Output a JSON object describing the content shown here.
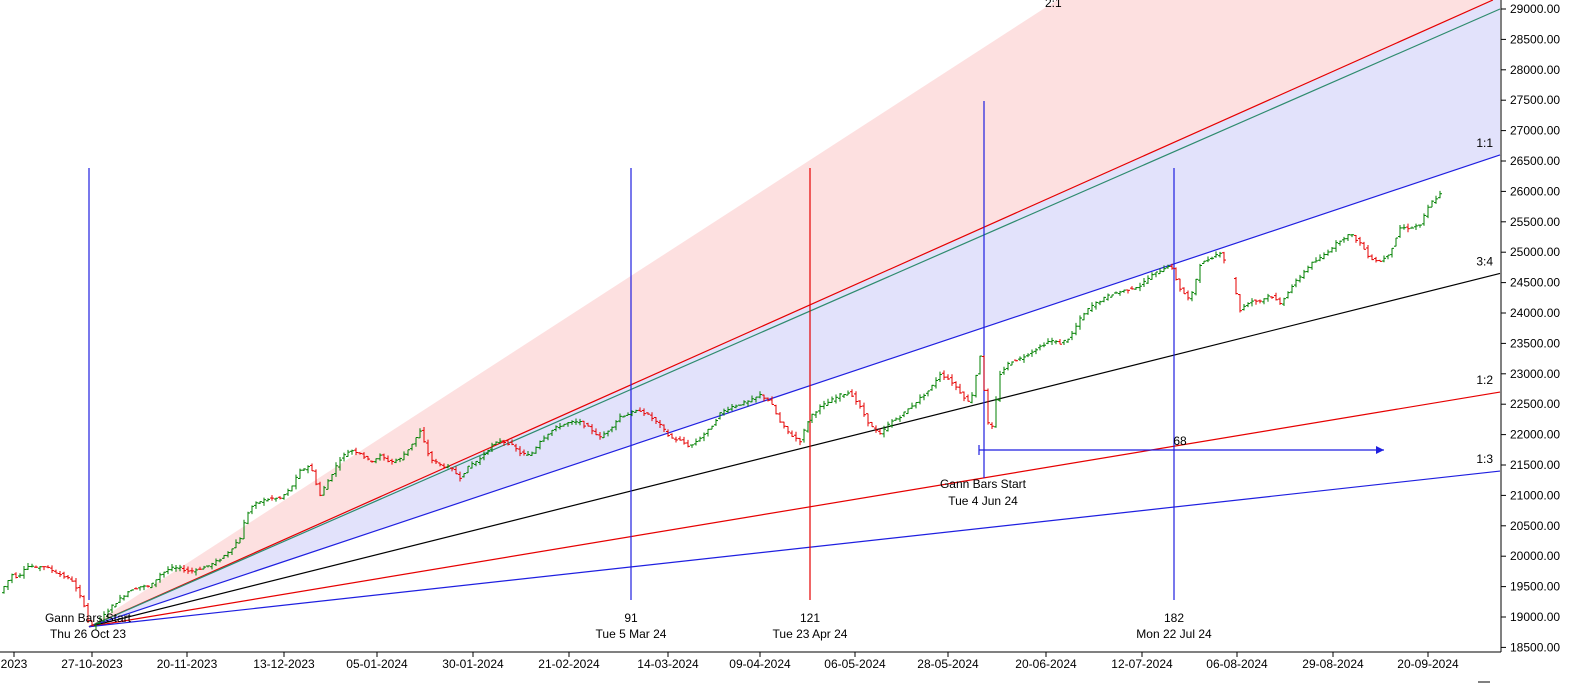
{
  "chart_data": {
    "type": "line",
    "title": "",
    "price_axis": {
      "ylim": [
        18500,
        29100
      ],
      "ticks": [
        "29000.00",
        "28500.00",
        "28000.00",
        "27500.00",
        "27000.00",
        "26500.00",
        "26000.00",
        "25500.00",
        "25000.00",
        "24500.00",
        "24000.00",
        "23500.00",
        "23000.00",
        "22500.00",
        "22000.00",
        "21500.00",
        "21000.00",
        "20500.00",
        "20000.00",
        "19500.00",
        "19000.00",
        "18500.00"
      ]
    },
    "date_axis": {
      "ticks": [
        "2023",
        "27-10-2023",
        "20-11-2023",
        "13-12-2023",
        "05-01-2024",
        "30-01-2024",
        "21-02-2024",
        "14-03-2024",
        "09-04-2024",
        "06-05-2024",
        "28-05-2024",
        "20-06-2024",
        "12-07-2024",
        "06-08-2024",
        "29-08-2024",
        "20-09-2024"
      ]
    },
    "gann_fan": {
      "origin": {
        "date": "2023-10-26",
        "price": 18840
      },
      "lines": [
        {
          "label": "2:1",
          "color": "#e60000",
          "end_price": 29200
        },
        {
          "label": "",
          "color": "#2e8b6e",
          "end_price": 29000
        },
        {
          "label": "1:1",
          "color": "#1f1fe0",
          "end_price": 26600
        },
        {
          "label": "3:4",
          "color": "#000000",
          "end_price": 24650
        },
        {
          "label": "1:2",
          "color": "#e60000",
          "end_price": 22700
        },
        {
          "label": "1:3",
          "color": "#1f1fe0",
          "end_price": 21400
        }
      ]
    },
    "vertical_markers": [
      {
        "label": "Gann Bars Start",
        "date_label": "Thu 26 Oct 23",
        "color": "#1f1fe0"
      },
      {
        "label": "91",
        "date_label": "Tue 5 Mar 24",
        "color": "#1f1fe0"
      },
      {
        "label": "121",
        "date_label": "Tue 23 Apr 24",
        "color": "#e60000"
      },
      {
        "label": "",
        "date_label": "",
        "color": "#1f1fe0"
      },
      {
        "label": "182",
        "date_label": "Mon 22 Jul 24",
        "color": "#1f1fe0"
      }
    ],
    "second_start": {
      "label": "Gann Bars Start",
      "date_label": "Tue 4 Jun 24",
      "count_label": "68"
    },
    "series": [
      {
        "type": "ohlc",
        "up_color": "#008000",
        "down_color": "#e60000",
        "close_path": [
          [
            0,
            19400
          ],
          [
            6,
            19550
          ],
          [
            12,
            19700
          ],
          [
            18,
            19650
          ],
          [
            24,
            19800
          ],
          [
            30,
            19850
          ],
          [
            36,
            19800
          ],
          [
            42,
            19850
          ],
          [
            48,
            19800
          ],
          [
            54,
            19750
          ],
          [
            60,
            19700
          ],
          [
            66,
            19650
          ],
          [
            72,
            19600
          ],
          [
            78,
            19400
          ],
          [
            84,
            19200
          ],
          [
            88,
            18950
          ],
          [
            92,
            18850
          ],
          [
            100,
            18950
          ],
          [
            110,
            19150
          ],
          [
            120,
            19300
          ],
          [
            130,
            19450
          ],
          [
            140,
            19500
          ],
          [
            150,
            19500
          ],
          [
            160,
            19700
          ],
          [
            170,
            19800
          ],
          [
            180,
            19800
          ],
          [
            190,
            19750
          ],
          [
            200,
            19800
          ],
          [
            210,
            19850
          ],
          [
            220,
            19950
          ],
          [
            230,
            20100
          ],
          [
            240,
            20300
          ],
          [
            245,
            20600
          ],
          [
            250,
            20800
          ],
          [
            260,
            20900
          ],
          [
            270,
            20950
          ],
          [
            280,
            20950
          ],
          [
            290,
            21100
          ],
          [
            300,
            21400
          ],
          [
            310,
            21500
          ],
          [
            320,
            21000
          ],
          [
            330,
            21300
          ],
          [
            340,
            21600
          ],
          [
            350,
            21750
          ],
          [
            360,
            21700
          ],
          [
            370,
            21550
          ],
          [
            380,
            21650
          ],
          [
            390,
            21550
          ],
          [
            400,
            21600
          ],
          [
            410,
            21800
          ],
          [
            420,
            22050
          ],
          [
            430,
            21600
          ],
          [
            440,
            21500
          ],
          [
            450,
            21450
          ],
          [
            460,
            21300
          ],
          [
            470,
            21500
          ],
          [
            480,
            21600
          ],
          [
            490,
            21800
          ],
          [
            500,
            21900
          ],
          [
            510,
            21850
          ],
          [
            520,
            21700
          ],
          [
            530,
            21650
          ],
          [
            540,
            21900
          ],
          [
            550,
            22050
          ],
          [
            560,
            22150
          ],
          [
            570,
            22200
          ],
          [
            580,
            22200
          ],
          [
            590,
            22100
          ],
          [
            600,
            21950
          ],
          [
            610,
            22100
          ],
          [
            620,
            22300
          ],
          [
            630,
            22350
          ],
          [
            640,
            22400
          ],
          [
            650,
            22300
          ],
          [
            660,
            22150
          ],
          [
            670,
            21950
          ],
          [
            680,
            21900
          ],
          [
            690,
            21800
          ],
          [
            700,
            21950
          ],
          [
            710,
            22100
          ],
          [
            720,
            22350
          ],
          [
            730,
            22450
          ],
          [
            740,
            22500
          ],
          [
            750,
            22550
          ],
          [
            760,
            22650
          ],
          [
            770,
            22550
          ],
          [
            780,
            22200
          ],
          [
            790,
            22000
          ],
          [
            800,
            21900
          ],
          [
            810,
            22300
          ],
          [
            820,
            22450
          ],
          [
            830,
            22550
          ],
          [
            840,
            22650
          ],
          [
            850,
            22700
          ],
          [
            860,
            22450
          ],
          [
            870,
            22150
          ],
          [
            880,
            22000
          ],
          [
            890,
            22200
          ],
          [
            900,
            22300
          ],
          [
            910,
            22450
          ],
          [
            920,
            22600
          ],
          [
            930,
            22750
          ],
          [
            940,
            23000
          ],
          [
            950,
            22900
          ],
          [
            960,
            22700
          ],
          [
            970,
            22500
          ],
          [
            980,
            23300
          ],
          [
            990,
            21900
          ],
          [
            1000,
            23000
          ],
          [
            1010,
            23200
          ],
          [
            1020,
            23250
          ],
          [
            1030,
            23350
          ],
          [
            1040,
            23450
          ],
          [
            1050,
            23550
          ],
          [
            1060,
            23500
          ],
          [
            1070,
            23600
          ],
          [
            1080,
            23900
          ],
          [
            1090,
            24100
          ],
          [
            1100,
            24200
          ],
          [
            1110,
            24300
          ],
          [
            1120,
            24350
          ],
          [
            1130,
            24400
          ],
          [
            1140,
            24450
          ],
          [
            1150,
            24600
          ],
          [
            1160,
            24700
          ],
          [
            1170,
            24800
          ],
          [
            1180,
            24400
          ],
          [
            1190,
            24200
          ],
          [
            1200,
            24800
          ],
          [
            1210,
            24900
          ],
          [
            1220,
            25000
          ],
          [
            1230,
            24700
          ],
          [
            1240,
            24050
          ],
          [
            1250,
            24200
          ],
          [
            1260,
            24200
          ],
          [
            1270,
            24300
          ],
          [
            1280,
            24150
          ],
          [
            1290,
            24400
          ],
          [
            1300,
            24600
          ],
          [
            1310,
            24800
          ],
          [
            1320,
            24900
          ],
          [
            1330,
            25050
          ],
          [
            1340,
            25200
          ],
          [
            1350,
            25300
          ],
          [
            1360,
            25150
          ],
          [
            1370,
            24900
          ],
          [
            1380,
            24850
          ],
          [
            1390,
            25000
          ],
          [
            1400,
            25400
          ],
          [
            1410,
            25400
          ],
          [
            1420,
            25450
          ],
          [
            1430,
            25800
          ],
          [
            1440,
            25950
          ]
        ]
      }
    ]
  }
}
